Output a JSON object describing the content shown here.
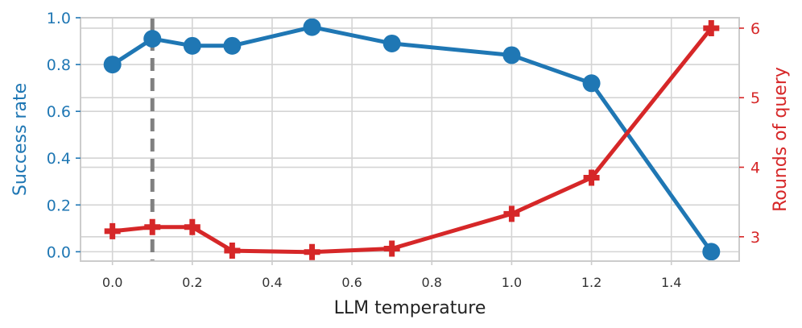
{
  "chart_data": {
    "type": "line",
    "xlabel": "LLM temperature",
    "xlim": [
      -0.08,
      1.57
    ],
    "x_ticks": [
      "0.0",
      "0.2",
      "0.4",
      "0.6",
      "0.8",
      "1.0",
      "1.2",
      "1.4"
    ],
    "x_tick_values": [
      0.0,
      0.2,
      0.4,
      0.6,
      0.8,
      1.0,
      1.2,
      1.4
    ],
    "left_axis": {
      "label": "Success rate",
      "color": "#1f77b4",
      "ylim": [
        -0.04,
        1.0
      ],
      "ticks": [
        "0.0",
        "0.2",
        "0.4",
        "0.6",
        "0.8",
        "1.0"
      ],
      "tick_values": [
        0.0,
        0.2,
        0.4,
        0.6,
        0.8,
        1.0
      ]
    },
    "right_axis": {
      "label": "Rounds of query",
      "color": "#d62728",
      "ylim": [
        2.65,
        6.15
      ],
      "ticks": [
        "3",
        "4",
        "5",
        "6"
      ],
      "tick_values": [
        3,
        4,
        5,
        6
      ]
    },
    "grid": true,
    "reference_line": {
      "x": 0.1,
      "style": "dashed",
      "color": "#808080"
    },
    "series": [
      {
        "axis": "left",
        "marker": "circle",
        "color": "#1f77b4",
        "x": [
          0.0,
          0.1,
          0.2,
          0.3,
          0.5,
          0.7,
          1.0,
          1.2,
          1.5
        ],
        "values": [
          0.8,
          0.91,
          0.88,
          0.88,
          0.96,
          0.89,
          0.84,
          0.72,
          0.0
        ]
      },
      {
        "axis": "right",
        "marker": "plus",
        "color": "#d62728",
        "x": [
          0.0,
          0.1,
          0.2,
          0.3,
          0.5,
          0.7,
          1.0,
          1.2,
          1.5
        ],
        "values": [
          3.08,
          3.14,
          3.14,
          2.8,
          2.78,
          2.83,
          3.33,
          3.85,
          6.0
        ]
      }
    ]
  }
}
